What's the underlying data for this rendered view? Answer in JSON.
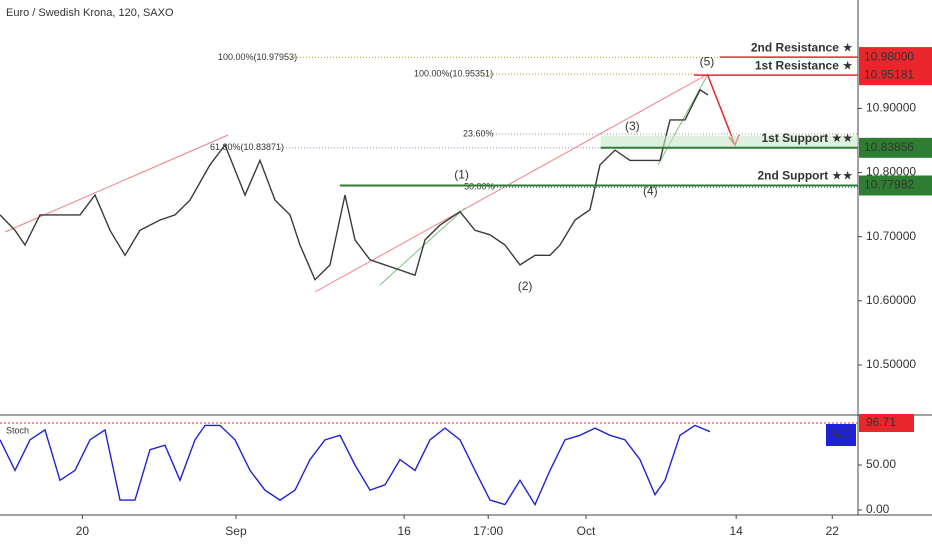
{
  "chart_data": [
    {
      "type": "line",
      "title": "Euro / Swedish Krona, 120, SAXO",
      "color": "#3a3a3a",
      "x": [
        0,
        1.75,
        2.91,
        4.66,
        6.99,
        9.32,
        11.07,
        12.82,
        14.57,
        16.32,
        18.65,
        20.4,
        22.14,
        24.48,
        26.22,
        27.39,
        28.55,
        30.3,
        32.05,
        33.8,
        34.97,
        36.71,
        38.46,
        40.21,
        41.38,
        43.12,
        44.87,
        46.62,
        48.37,
        49.53,
        51.28,
        53.61,
        55.36,
        57.11,
        58.86,
        60.61,
        62.35,
        64.1,
        65.27,
        67.02,
        68.76,
        69.93,
        71.68,
        73.43,
        75.17,
        76.92,
        78.09,
        79.84,
        81.59,
        82.52
      ],
      "values": [
        10.734,
        10.71,
        10.687,
        10.734,
        10.734,
        10.734,
        10.765,
        10.71,
        10.671,
        10.71,
        10.726,
        10.734,
        10.757,
        10.812,
        10.843,
        10.804,
        10.765,
        10.819,
        10.757,
        10.734,
        10.687,
        10.633,
        10.656,
        10.765,
        10.695,
        10.664,
        10.656,
        10.648,
        10.64,
        10.695,
        10.718,
        10.739,
        10.71,
        10.703,
        10.687,
        10.656,
        10.671,
        10.671,
        10.687,
        10.726,
        10.742,
        10.812,
        10.835,
        10.819,
        10.819,
        10.819,
        10.882,
        10.882,
        10.929,
        10.921
      ],
      "xlim": [
        0,
        100
      ],
      "ylim": [
        10.422,
        11.069
      ],
      "xticks": [
        {
          "value": 9.6,
          "label": "20"
        },
        {
          "value": 27.5,
          "label": "Sep"
        },
        {
          "value": 47.1,
          "label": "16"
        },
        {
          "value": 56.9,
          "label": "17:00"
        },
        {
          "value": 68.3,
          "label": "Oct"
        },
        {
          "value": 85.8,
          "label": "14"
        },
        {
          "value": 97.0,
          "label": "22"
        }
      ],
      "yticks": [
        {
          "value": 10.5,
          "label": "10.50000"
        },
        {
          "value": 10.6,
          "label": "10.60000"
        },
        {
          "value": 10.7,
          "label": "10.70000"
        },
        {
          "value": 10.8,
          "label": "10.80000"
        },
        {
          "value": 10.9,
          "label": "10.90000"
        }
      ],
      "levels": [
        {
          "name": "2nd Resistance ★",
          "value": 10.98,
          "label": "10.98000",
          "color": "#e8262b",
          "start": 83.9
        },
        {
          "name": "1st Resistance ★",
          "value": 10.95181,
          "label": "10.95181",
          "color": "#e8262b",
          "start": 80.9
        },
        {
          "name": "1st Support ★★",
          "value": 10.83856,
          "label": "10.83856",
          "color": "#2e7d32",
          "start": 70.0
        },
        {
          "name": "2nd Support ★★",
          "value": 10.77982,
          "label": "10.77982",
          "color": "#2e7d32",
          "start": 39.6
        }
      ],
      "fib_levels": [
        {
          "label": "100.00%(10.97953)",
          "value": 10.97953,
          "color": "#c79a2a"
        },
        {
          "label": "100.00%(10.95351)",
          "value": 10.95351,
          "color": "#c79a2a"
        },
        {
          "label": "61.80%(10.83871)",
          "value": 10.83871,
          "color": "#9a90c2"
        },
        {
          "label": "23.60%",
          "value": 10.86,
          "color": "#9a90c2"
        },
        {
          "label": "50.00%",
          "value": 10.777,
          "color": "#3b5ba9"
        }
      ],
      "annotations": [
        {
          "text": "(1)",
          "x": 53.8,
          "y": 10.796
        },
        {
          "text": "(2)",
          "x": 61.2,
          "y": 10.622
        },
        {
          "text": "(3)",
          "x": 73.7,
          "y": 10.871
        },
        {
          "text": "(4)",
          "x": 75.8,
          "y": 10.77
        },
        {
          "text": "(5)",
          "x": 82.4,
          "y": 10.972
        }
      ]
    },
    {
      "type": "line",
      "title": "Stoch",
      "color": "#1e22d6",
      "series_name": "%D",
      "x": [
        0,
        1.75,
        3.5,
        5.24,
        6.99,
        8.74,
        10.49,
        12.24,
        13.99,
        15.73,
        17.48,
        19.23,
        20.98,
        22.73,
        23.89,
        25.64,
        27.39,
        29.14,
        30.89,
        32.63,
        34.38,
        36.13,
        37.88,
        39.63,
        41.38,
        43.12,
        44.87,
        46.62,
        48.37,
        50.12,
        51.86,
        53.61,
        55.36,
        57.11,
        58.86,
        60.61,
        62.35,
        64.1,
        65.85,
        67.6,
        69.35,
        71.1,
        72.84,
        74.59,
        76.34,
        77.51,
        79.25,
        81.0,
        82.75
      ],
      "values": [
        78,
        44,
        78,
        89,
        33,
        44,
        78,
        89,
        11,
        11,
        67,
        72,
        33,
        78,
        94,
        94,
        78,
        44,
        22,
        11,
        22,
        56,
        78,
        83,
        50,
        22,
        28,
        56,
        44,
        78,
        91,
        78,
        44,
        11,
        6,
        33,
        6,
        44,
        78,
        83,
        91,
        83,
        78,
        56,
        17,
        33,
        83,
        94,
        87
      ],
      "current": 96.71,
      "current_color": "#e8262b",
      "ylim": [
        -5.6,
        105.6
      ],
      "yticks": [
        {
          "value": 0,
          "label": "0.00"
        },
        {
          "value": 50,
          "label": "50.00"
        }
      ]
    }
  ]
}
